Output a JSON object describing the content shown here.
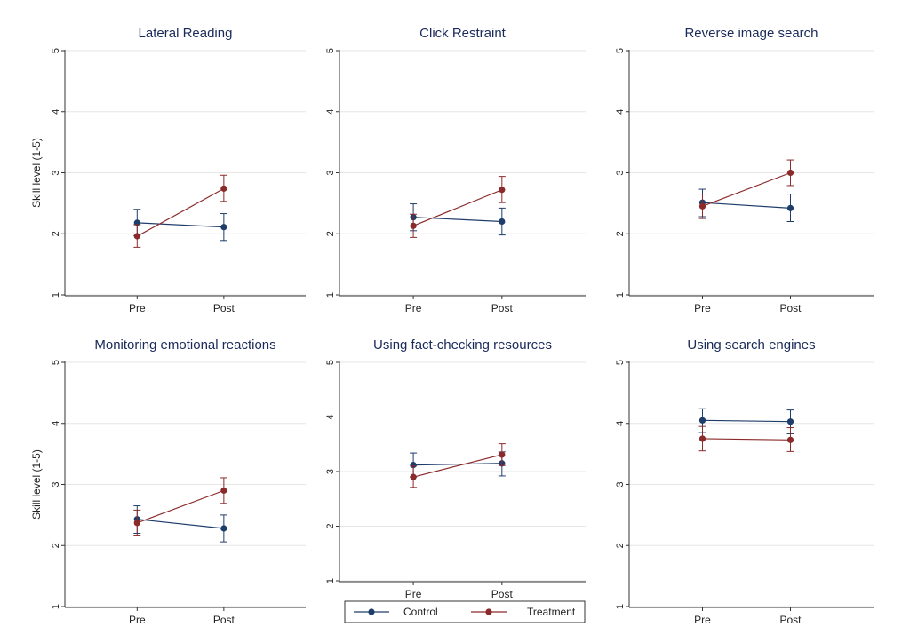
{
  "chart_data": [
    {
      "type": "line",
      "title": "Lateral Reading",
      "ylabel": "Skill level (1-5)",
      "categories": [
        "Pre",
        "Post"
      ],
      "ylim": [
        1,
        5
      ],
      "yticks": [
        1,
        2,
        3,
        4,
        5
      ],
      "series": [
        {
          "name": "Control",
          "color": "#1f3d6b",
          "values": [
            2.18,
            2.11
          ],
          "ci_low": [
            1.97,
            1.89
          ],
          "ci_high": [
            2.4,
            2.33
          ]
        },
        {
          "name": "Treatment",
          "color": "#8b2a2a",
          "values": [
            1.96,
            2.74
          ],
          "ci_low": [
            1.78,
            2.53
          ],
          "ci_high": [
            2.15,
            2.96
          ]
        }
      ]
    },
    {
      "type": "line",
      "title": "Click Restraint",
      "ylabel": "",
      "categories": [
        "Pre",
        "Post"
      ],
      "ylim": [
        1,
        5
      ],
      "yticks": [
        1,
        2,
        3,
        4,
        5
      ],
      "series": [
        {
          "name": "Control",
          "color": "#1f3d6b",
          "values": [
            2.27,
            2.2
          ],
          "ci_low": [
            2.05,
            1.98
          ],
          "ci_high": [
            2.49,
            2.42
          ]
        },
        {
          "name": "Treatment",
          "color": "#8b2a2a",
          "values": [
            2.13,
            2.72
          ],
          "ci_low": [
            1.94,
            2.51
          ],
          "ci_high": [
            2.32,
            2.94
          ]
        }
      ]
    },
    {
      "type": "line",
      "title": "Reverse image search",
      "ylabel": "",
      "categories": [
        "Pre",
        "Post"
      ],
      "ylim": [
        1,
        5
      ],
      "yticks": [
        1,
        2,
        3,
        4,
        5
      ],
      "series": [
        {
          "name": "Control",
          "color": "#1f3d6b",
          "values": [
            2.51,
            2.42
          ],
          "ci_low": [
            2.28,
            2.2
          ],
          "ci_high": [
            2.73,
            2.65
          ]
        },
        {
          "name": "Treatment",
          "color": "#8b2a2a",
          "values": [
            2.45,
            3.0
          ],
          "ci_low": [
            2.25,
            2.79
          ],
          "ci_high": [
            2.65,
            3.21
          ]
        }
      ]
    },
    {
      "type": "line",
      "title": "Monitoring emotional reactions",
      "ylabel": "Skill level (1-5)",
      "categories": [
        "Pre",
        "Post"
      ],
      "ylim": [
        1,
        5
      ],
      "yticks": [
        1,
        2,
        3,
        4,
        5
      ],
      "series": [
        {
          "name": "Control",
          "color": "#1f3d6b",
          "values": [
            2.43,
            2.28
          ],
          "ci_low": [
            2.2,
            2.06
          ],
          "ci_high": [
            2.65,
            2.5
          ]
        },
        {
          "name": "Treatment",
          "color": "#8b2a2a",
          "values": [
            2.37,
            2.9
          ],
          "ci_low": [
            2.17,
            2.69
          ],
          "ci_high": [
            2.58,
            3.11
          ]
        }
      ]
    },
    {
      "type": "line",
      "title": "Using fact-checking resources",
      "ylabel": "",
      "categories": [
        "Pre",
        "Post"
      ],
      "ylim": [
        1,
        5
      ],
      "yticks": [
        1,
        2,
        3,
        4,
        5
      ],
      "series": [
        {
          "name": "Control",
          "color": "#1f3d6b",
          "values": [
            3.12,
            3.15
          ],
          "ci_low": [
            2.9,
            2.92
          ],
          "ci_high": [
            3.34,
            3.36
          ]
        },
        {
          "name": "Treatment",
          "color": "#8b2a2a",
          "values": [
            2.9,
            3.31
          ],
          "ci_low": [
            2.71,
            3.11
          ],
          "ci_high": [
            3.1,
            3.51
          ]
        }
      ]
    },
    {
      "type": "line",
      "title": "Using search engines",
      "ylabel": "",
      "categories": [
        "Pre",
        "Post"
      ],
      "ylim": [
        1,
        5
      ],
      "yticks": [
        1,
        2,
        3,
        4,
        5
      ],
      "series": [
        {
          "name": "Control",
          "color": "#1f3d6b",
          "values": [
            4.05,
            4.03
          ],
          "ci_low": [
            3.85,
            3.83
          ],
          "ci_high": [
            4.24,
            4.22
          ]
        },
        {
          "name": "Treatment",
          "color": "#8b2a2a",
          "values": [
            3.75,
            3.73
          ],
          "ci_low": [
            3.55,
            3.54
          ],
          "ci_high": [
            3.95,
            3.93
          ]
        }
      ]
    }
  ],
  "legend": {
    "position": "bottom-center",
    "items": [
      {
        "label": "Control",
        "color": "#1f3d6b"
      },
      {
        "label": "Treatment",
        "color": "#8b2a2a"
      }
    ]
  },
  "colors": {
    "control": "#1f3d6b",
    "treatment": "#8b2a2a",
    "title": "#1a2a5a",
    "grid": "#e6e6e6"
  }
}
